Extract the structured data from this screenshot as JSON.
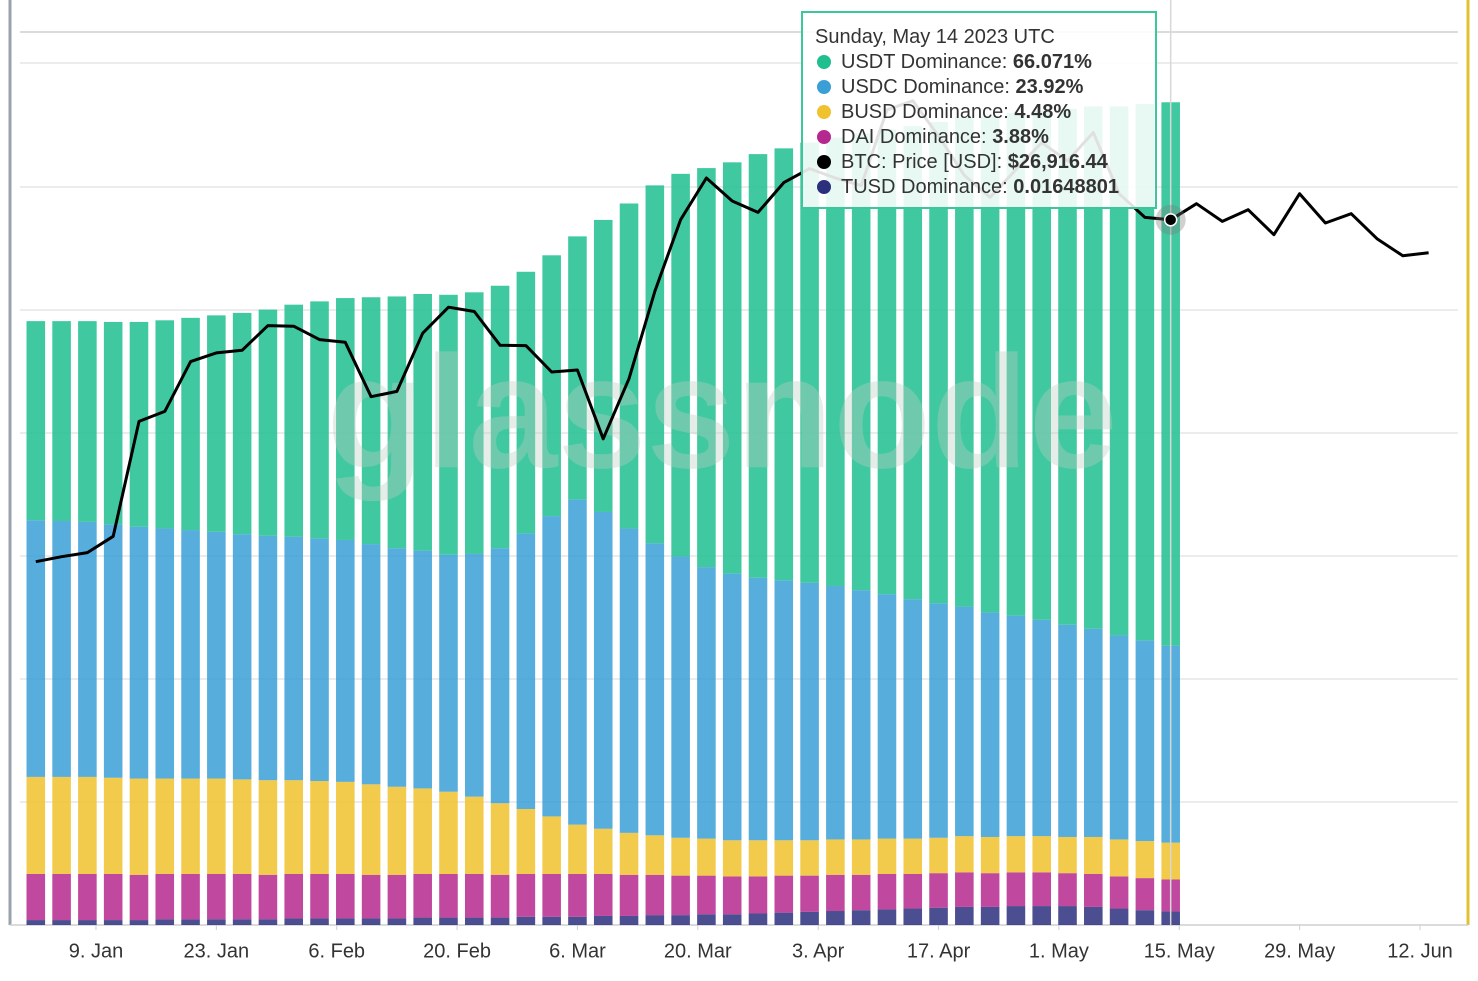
{
  "chart_data": {
    "type": "stacked-bar-line",
    "watermark": "glassnode",
    "x": [
      "2023-01-02",
      "2023-01-05",
      "2023-01-08",
      "2023-01-11",
      "2023-01-14",
      "2023-01-17",
      "2023-01-20",
      "2023-01-23",
      "2023-01-26",
      "2023-01-29",
      "2023-02-01",
      "2023-02-04",
      "2023-02-07",
      "2023-02-10",
      "2023-02-13",
      "2023-02-16",
      "2023-02-19",
      "2023-02-22",
      "2023-02-25",
      "2023-02-28",
      "2023-03-03",
      "2023-03-06",
      "2023-03-09",
      "2023-03-12",
      "2023-03-15",
      "2023-03-18",
      "2023-03-21",
      "2023-03-24",
      "2023-03-27",
      "2023-03-30",
      "2023-04-02",
      "2023-04-05",
      "2023-04-08",
      "2023-04-11",
      "2023-04-14",
      "2023-04-17",
      "2023-04-20",
      "2023-04-23",
      "2023-04-26",
      "2023-04-29",
      "2023-05-02",
      "2023-05-05",
      "2023-05-08",
      "2023-05-11",
      "2023-05-14",
      "2023-05-17",
      "2023-05-20",
      "2023-05-23",
      "2023-05-26",
      "2023-05-29",
      "2023-06-01",
      "2023-06-04",
      "2023-06-07",
      "2023-06-10",
      "2023-06-13"
    ],
    "xlim": [
      "2023-01-01",
      "2023-06-17"
    ],
    "xticks": [
      {
        "value": "2023-01-09",
        "label": "9. Jan"
      },
      {
        "value": "2023-01-23",
        "label": "23. Jan"
      },
      {
        "value": "2023-02-06",
        "label": "6. Feb"
      },
      {
        "value": "2023-02-20",
        "label": "20. Feb"
      },
      {
        "value": "2023-03-06",
        "label": "6. Mar"
      },
      {
        "value": "2023-03-20",
        "label": "20. Mar"
      },
      {
        "value": "2023-04-03",
        "label": "3. Apr"
      },
      {
        "value": "2023-04-17",
        "label": "17. Apr"
      },
      {
        "value": "2023-05-01",
        "label": "1. May"
      },
      {
        "value": "2023-05-15",
        "label": "15. May"
      },
      {
        "value": "2023-05-29",
        "label": "29. May"
      },
      {
        "value": "2023-06-12",
        "label": "12. Jun"
      }
    ],
    "ylim": [
      0,
      110
    ],
    "y2lim": [
      5800,
      32900
    ],
    "series": [
      {
        "name": "USDT Dominance",
        "color": "#1fbf8f",
        "values": [
          24.2,
          24.3,
          24.4,
          24.6,
          24.9,
          25.3,
          25.8,
          26.3,
          26.9,
          27.5,
          28.2,
          28.8,
          29.4,
          30.0,
          30.6,
          31.2,
          31.6,
          31.8,
          31.9,
          31.8,
          31.7,
          32.0,
          35.5,
          39.5,
          43.5,
          46.5,
          48.5,
          50.0,
          51.5,
          52.5,
          53.5,
          54.5,
          55.5,
          56.5,
          57.5,
          58.5,
          59.5,
          60.3,
          61.1,
          61.9,
          62.7,
          63.5,
          64.3,
          65.2,
          66.071,
          null,
          null,
          null,
          null,
          null,
          null,
          null,
          null,
          null,
          null
        ]
      },
      {
        "name": "USDC Dominance",
        "color": "#3a9fd6",
        "values": [
          31.2,
          31.1,
          31.0,
          30.8,
          30.6,
          30.4,
          30.2,
          30.0,
          29.8,
          29.7,
          29.6,
          29.5,
          29.4,
          29.2,
          29.0,
          28.9,
          28.8,
          29.5,
          31.0,
          33.5,
          36.5,
          39.5,
          38.5,
          37.0,
          35.5,
          34.2,
          33.0,
          32.4,
          31.9,
          31.6,
          31.3,
          30.8,
          30.3,
          29.7,
          29.1,
          28.5,
          27.9,
          27.3,
          26.8,
          26.3,
          25.8,
          25.3,
          24.8,
          24.4,
          23.92,
          null,
          null,
          null,
          null,
          null,
          null,
          null,
          null,
          null,
          null
        ]
      },
      {
        "name": "BUSD Dominance",
        "color": "#f0c22e",
        "values": [
          11.8,
          11.8,
          11.8,
          11.7,
          11.7,
          11.6,
          11.6,
          11.6,
          11.5,
          11.5,
          11.4,
          11.3,
          11.2,
          11.0,
          10.7,
          10.4,
          10.0,
          9.4,
          8.7,
          7.9,
          7.0,
          6.0,
          5.5,
          5.1,
          4.8,
          4.6,
          4.5,
          4.4,
          4.4,
          4.3,
          4.3,
          4.3,
          4.3,
          4.3,
          4.3,
          4.3,
          4.4,
          4.4,
          4.4,
          4.4,
          4.4,
          4.5,
          4.5,
          4.5,
          4.48,
          null,
          null,
          null,
          null,
          null,
          null,
          null,
          null,
          null,
          null
        ]
      },
      {
        "name": "DAI Dominance",
        "color": "#b5288e",
        "values": [
          5.6,
          5.6,
          5.6,
          5.6,
          5.5,
          5.5,
          5.5,
          5.5,
          5.5,
          5.4,
          5.4,
          5.4,
          5.4,
          5.3,
          5.3,
          5.3,
          5.3,
          5.3,
          5.2,
          5.2,
          5.2,
          5.2,
          5.1,
          5.0,
          4.9,
          4.8,
          4.7,
          4.6,
          4.5,
          4.5,
          4.4,
          4.4,
          4.3,
          4.3,
          4.2,
          4.2,
          4.2,
          4.1,
          4.1,
          4.1,
          4.0,
          4.0,
          3.9,
          3.9,
          3.88,
          null,
          null,
          null,
          null,
          null,
          null,
          null,
          null,
          null,
          null
        ]
      },
      {
        "name": "BTC: Price [USD]",
        "color": "#000000",
        "axis": "y2",
        "values": [
          16680,
          16830,
          16950,
          17440,
          20880,
          21180,
          22670,
          22930,
          23010,
          23750,
          23730,
          23330,
          23250,
          21620,
          21780,
          23520,
          24300,
          24170,
          23160,
          23150,
          22360,
          22420,
          20360,
          22160,
          24770,
          26920,
          28170,
          27480,
          27140,
          28030,
          28450,
          28170,
          27940,
          30210,
          30480,
          29430,
          28250,
          27590,
          28420,
          29230,
          28680,
          29530,
          27700,
          26990,
          26916.44,
          27400,
          26870,
          27220,
          26470,
          27700,
          26820,
          27100,
          26350,
          25840,
          25930
        ]
      },
      {
        "name": "TUSD Dominance",
        "color": "#2b2f7c",
        "values": [
          0.6,
          0.6,
          0.6,
          0.6,
          0.6,
          0.7,
          0.7,
          0.7,
          0.7,
          0.7,
          0.8,
          0.8,
          0.8,
          0.8,
          0.8,
          0.9,
          0.9,
          0.9,
          0.9,
          1.0,
          1.0,
          1.0,
          1.1,
          1.1,
          1.2,
          1.2,
          1.3,
          1.3,
          1.4,
          1.5,
          1.6,
          1.7,
          1.8,
          1.9,
          2.0,
          2.1,
          2.2,
          2.2,
          2.3,
          2.3,
          2.3,
          2.2,
          2.0,
          1.8,
          1.65,
          null,
          null,
          null,
          null,
          null,
          null,
          null,
          null,
          null,
          null
        ]
      }
    ],
    "tooltip": {
      "date": "Sunday, May 14 2023 UTC",
      "index": 44,
      "rows": [
        {
          "label": "USDT Dominance:",
          "value": "66.071%"
        },
        {
          "label": "USDC Dominance:",
          "value": "23.92%"
        },
        {
          "label": "BUSD Dominance:",
          "value": "4.48%"
        },
        {
          "label": "DAI Dominance:",
          "value": "3.88%"
        },
        {
          "label": "BTC: Price [USD]:",
          "value": "$26,916.44"
        },
        {
          "label": "TUSD Dominance:",
          "value": "0.01648801"
        }
      ]
    }
  }
}
